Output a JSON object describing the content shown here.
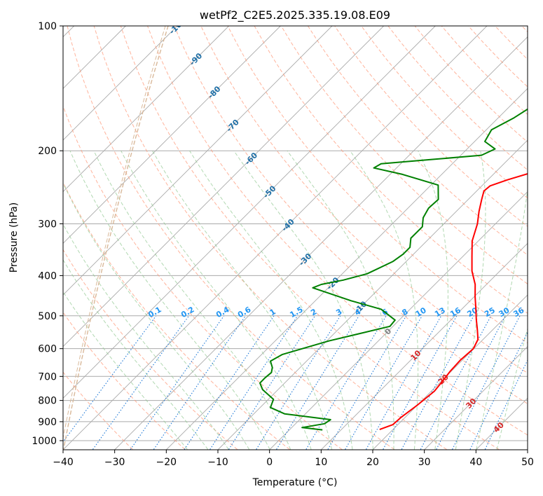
{
  "chart_data": {
    "type": "line",
    "title": "wetPf2_C2E5.2025.335.19.08.E09",
    "xlabel": "Temperature (°C)",
    "ylabel": "Pressure (hPa)",
    "xlim": [
      -40,
      50
    ],
    "ylim": [
      1050,
      100
    ],
    "x_ticks": [
      -40,
      -30,
      -20,
      -10,
      0,
      10,
      20,
      30,
      40,
      50
    ],
    "x_tick_labels": [
      "−40",
      "−30",
      "−20",
      "−10",
      "0",
      "10",
      "20",
      "30",
      "40",
      "50"
    ],
    "y_ticks": [
      100,
      200,
      300,
      400,
      500,
      600,
      700,
      800,
      900,
      1000
    ],
    "y_tick_labels": [
      "100",
      "200",
      "300",
      "400",
      "500",
      "600",
      "700",
      "800",
      "900",
      "1000"
    ],
    "grid": true,
    "colors": {
      "temperature": "#ff0000",
      "dewpoint": "#008000",
      "isotherm": "#aaaaaa",
      "dry_adiabat": "#ff9a7a",
      "moist_adiabat": "#90c890",
      "mixing_ratio": "#1e78d6",
      "curved_guide": "#d9b99a",
      "isotherm_label_cold": "#1f6fa6",
      "isotherm_label_zero": "#808080",
      "isotherm_label_warm": "#d62728",
      "mixing_label": "#2196f3"
    },
    "series": [
      {
        "name": "Temperature",
        "points": [
          [
            17.4,
            940
          ],
          [
            19.0,
            915
          ],
          [
            19.2,
            880
          ],
          [
            20.0,
            820
          ],
          [
            20.6,
            760
          ],
          [
            20.2,
            715
          ],
          [
            19.8,
            680
          ],
          [
            19.6,
            640
          ],
          [
            19.9,
            600
          ],
          [
            19.0,
            570
          ],
          [
            17.0,
            540
          ],
          [
            14.8,
            510
          ],
          [
            12.6,
            480
          ],
          [
            10.2,
            450
          ],
          [
            7.8,
            420
          ],
          [
            4.6,
            390
          ],
          [
            1.8,
            360
          ],
          [
            -1.2,
            330
          ],
          [
            -3.5,
            300
          ],
          [
            -5.6,
            280
          ],
          [
            -7.4,
            262
          ],
          [
            -8.6,
            250
          ],
          [
            -8.4,
            243
          ],
          [
            -6.2,
            235
          ],
          [
            -3.0,
            226
          ],
          [
            -0.6,
            218
          ],
          [
            1.0,
            208
          ],
          [
            1.8,
            199
          ],
          [
            1.8,
            185
          ],
          [
            1.6,
            170
          ],
          [
            1.6,
            160
          ],
          [
            2.4,
            146
          ],
          [
            3.2,
            137
          ],
          [
            3.2,
            126
          ],
          [
            1.8,
            115
          ],
          [
            0.8,
            108
          ],
          [
            0.0,
            100
          ]
        ]
      },
      {
        "name": "Dewpoint",
        "points": [
          [
            6.4,
            942
          ],
          [
            2.0,
            930
          ],
          [
            5.6,
            910
          ],
          [
            6.0,
            890
          ],
          [
            -4.0,
            862
          ],
          [
            -8.0,
            832
          ],
          [
            -9.0,
            795
          ],
          [
            -13.0,
            753
          ],
          [
            -14.8,
            726
          ],
          [
            -14.8,
            705
          ],
          [
            -14.6,
            685
          ],
          [
            -15.4,
            666
          ],
          [
            -17.0,
            643
          ],
          [
            -16.0,
            620
          ],
          [
            -9.6,
            575
          ],
          [
            -0.6,
            530
          ],
          [
            -0.8,
            512
          ],
          [
            -5.6,
            482
          ],
          [
            -13.0,
            460
          ],
          [
            -23.0,
            428
          ],
          [
            -22.0,
            420
          ],
          [
            -18.6,
            410
          ],
          [
            -15.2,
            396
          ],
          [
            -12.6,
            370
          ],
          [
            -12.0,
            355
          ],
          [
            -12.0,
            342
          ],
          [
            -13.6,
            325
          ],
          [
            -13.6,
            305
          ],
          [
            -15.2,
            290
          ],
          [
            -16.0,
            275
          ],
          [
            -15.8,
            262
          ],
          [
            -18.6,
            242
          ],
          [
            -27.6,
            228
          ],
          [
            -34.4,
            220
          ],
          [
            -33.8,
            215
          ],
          [
            -25.0,
            210
          ],
          [
            -16.0,
            205
          ],
          [
            -14.6,
            198
          ],
          [
            -18.0,
            190
          ],
          [
            -19.0,
            178
          ],
          [
            -17.0,
            167
          ],
          [
            -15.8,
            157
          ],
          [
            -17.0,
            146
          ],
          [
            -16.0,
            132
          ],
          [
            -18.2,
            120
          ],
          [
            -16.8,
            110
          ],
          [
            -13.6,
            100
          ]
        ]
      }
    ],
    "isotherm_labels": [
      {
        "text": "-100",
        "t": -100
      },
      {
        "text": "-90",
        "t": -90
      },
      {
        "text": "-80",
        "t": -80
      },
      {
        "text": "-70",
        "t": -70
      },
      {
        "text": "-60",
        "t": -60
      },
      {
        "text": "-50",
        "t": -50
      },
      {
        "text": "-40",
        "t": -40
      },
      {
        "text": "-30",
        "t": -30
      },
      {
        "text": "-20",
        "t": -20
      },
      {
        "text": "-10",
        "t": -10
      },
      {
        "text": "0",
        "t": 0
      },
      {
        "text": "10",
        "t": 10
      },
      {
        "text": "20",
        "t": 20
      },
      {
        "text": "30",
        "t": 30
      },
      {
        "text": "40",
        "t": 40
      }
    ],
    "mixing_ratio_labels": [
      {
        "text": "0.1",
        "w": 0.1
      },
      {
        "text": "0.2",
        "w": 0.2
      },
      {
        "text": "0.4",
        "w": 0.4
      },
      {
        "text": "0.6",
        "w": 0.6
      },
      {
        "text": "1",
        "w": 1
      },
      {
        "text": "1.5",
        "w": 1.5
      },
      {
        "text": "2",
        "w": 2
      },
      {
        "text": "3",
        "w": 3
      },
      {
        "text": "4",
        "w": 4
      },
      {
        "text": "6",
        "w": 6
      },
      {
        "text": "8",
        "w": 8
      },
      {
        "text": "10",
        "w": 10
      },
      {
        "text": "13",
        "w": 13
      },
      {
        "text": "16",
        "w": 16
      },
      {
        "text": "20",
        "w": 20
      },
      {
        "text": "25",
        "w": 25
      },
      {
        "text": "30",
        "w": 30
      },
      {
        "text": "36",
        "w": 36
      }
    ]
  }
}
